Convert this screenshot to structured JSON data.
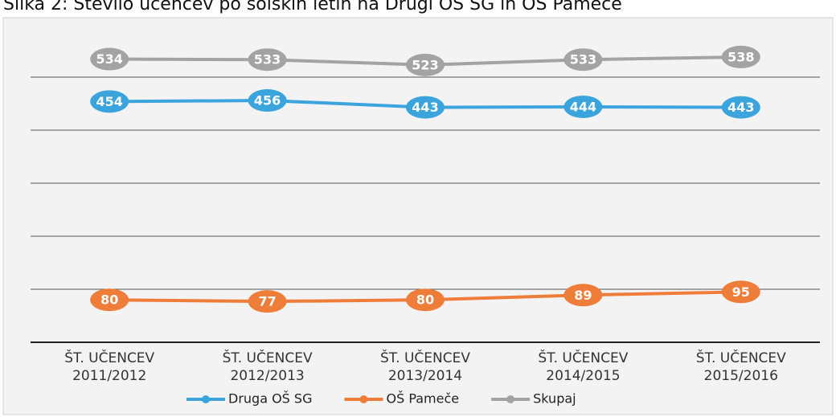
{
  "chart_data": {
    "type": "line",
    "title": "Slika 2: Število učencev po šolskih letih na Drugi OŠ SG in OŠ Pameče",
    "categories": [
      [
        "ŠT. UČENCEV",
        "2011/2012"
      ],
      [
        "ŠT. UČENCEV",
        "2012/2013"
      ],
      [
        "ŠT. UČENCEV",
        "2013/2014"
      ],
      [
        "ŠT. UČENCEV",
        "2014/2015"
      ],
      [
        "ŠT. UČENCEV",
        "2015/2016"
      ]
    ],
    "series": [
      {
        "name": "Druga OŠ SG",
        "color": "#3ba4dc",
        "values": [
          454,
          456,
          443,
          444,
          443
        ]
      },
      {
        "name": "OŠ Pameče",
        "color": "#ef7d3a",
        "values": [
          80,
          77,
          80,
          89,
          95
        ]
      },
      {
        "name": "Skupaj",
        "color": "#a3a3a3",
        "values": [
          534,
          533,
          523,
          533,
          538
        ]
      }
    ],
    "ylim": [
      0,
      600
    ],
    "yticks": [
      0,
      100,
      200,
      300,
      400,
      500
    ],
    "grid": true,
    "legend": "bottom"
  }
}
